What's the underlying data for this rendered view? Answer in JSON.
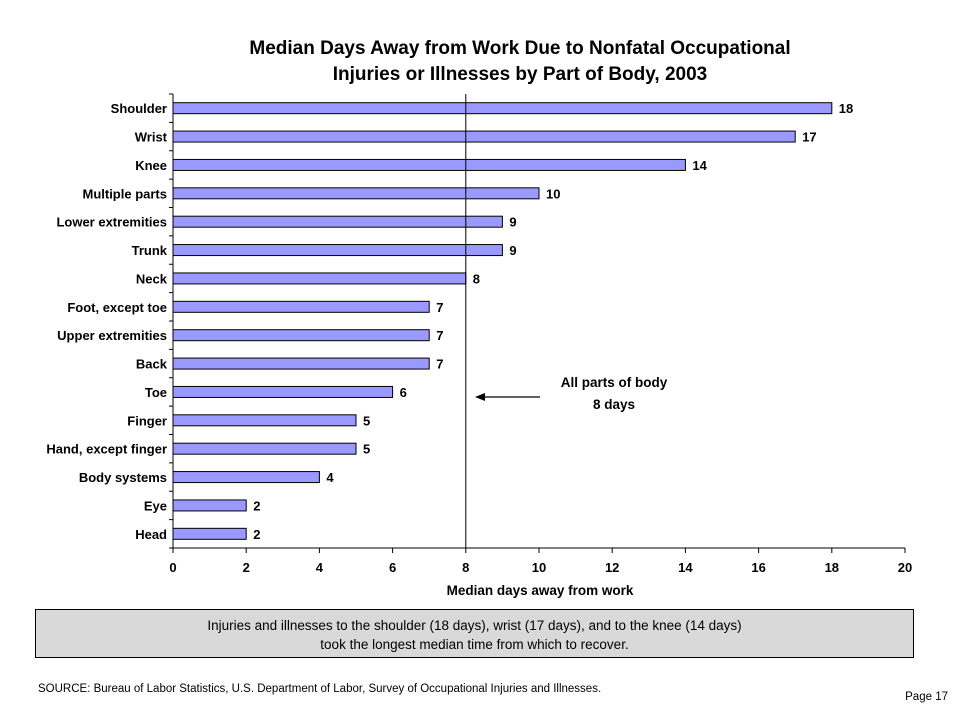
{
  "title_line1": "Median Days Away from Work Due to Nonfatal Occupational",
  "title_line2": "Injuries or Illnesses by Part of Body, 2003",
  "annotation_line1": "All parts of body",
  "annotation_line2": "8 days",
  "note_line1": "Injuries and illnesses to the shoulder (18 days), wrist (17 days), and to the knee (14 days)",
  "note_line2": "took the longest median time from which to recover.",
  "source": "SOURCE:   Bureau of Labor Statistics, U.S. Department of Labor, Survey of Occupational Injuries and Illnesses.",
  "page": "Page 17",
  "colors": {
    "bar": "#9999ff",
    "bar_stroke": "#000000",
    "note_bg": "#d9d9d9"
  },
  "chart_data": {
    "type": "bar",
    "orientation": "horizontal",
    "title": "Median Days Away from Work Due to Nonfatal Occupational Injuries or Illnesses by Part of Body, 2003",
    "xlabel": "Median days away from work",
    "ylabel": "",
    "xlim": [
      0,
      20
    ],
    "xticks": [
      0,
      2,
      4,
      6,
      8,
      10,
      12,
      14,
      16,
      18,
      20
    ],
    "reference_line": {
      "value": 8,
      "label": "All parts of body 8 days"
    },
    "categories": [
      "Shoulder",
      "Wrist",
      "Knee",
      "Multiple parts",
      "Lower extremities",
      "Trunk",
      "Neck",
      "Foot, except toe",
      "Upper extremities",
      "Back",
      "Toe",
      "Finger",
      "Hand, except finger",
      "Body systems",
      "Eye",
      "Head"
    ],
    "values": [
      18,
      17,
      14,
      10,
      9,
      9,
      8,
      7,
      7,
      7,
      6,
      5,
      5,
      4,
      2,
      2
    ],
    "grid": false,
    "legend": "none"
  }
}
